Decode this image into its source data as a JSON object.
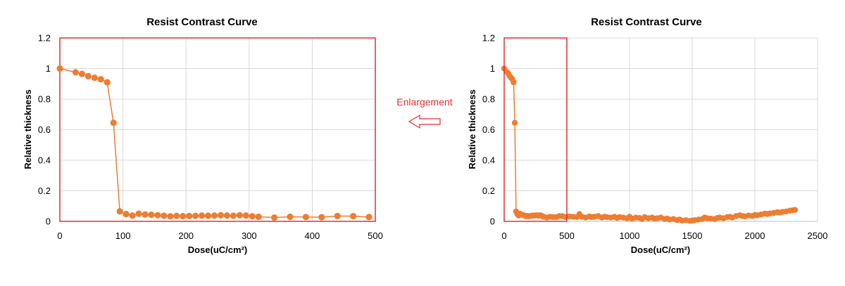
{
  "colors": {
    "series": "#ED7D31",
    "highlight": "#E03030",
    "grid": "#D9D9D9"
  },
  "annotation": {
    "label": "Enlargement",
    "arrow_icon": "left-arrow-icon"
  },
  "chart_data": [
    {
      "type": "scatter",
      "title": "Resist Contrast Curve",
      "xlabel": "Dose(uC/cm²)",
      "ylabel": "Relative thickness",
      "xlim": [
        0,
        500
      ],
      "ylim": [
        0,
        1.2
      ],
      "xticks": [
        "0",
        "100",
        "200",
        "300",
        "400",
        "500"
      ],
      "yticks": [
        "0",
        "0.2",
        "0.4",
        "0.6",
        "0.8",
        "1",
        "1.2"
      ],
      "grid": true,
      "series": [
        {
          "x": [
            0,
            25,
            35,
            45,
            55,
            65,
            75,
            85,
            95,
            105,
            115,
            125,
            135,
            145,
            155,
            165,
            175,
            185,
            195,
            205,
            215,
            225,
            235,
            245,
            255,
            265,
            275,
            285,
            295,
            305,
            315,
            340,
            365,
            390,
            415,
            440,
            465,
            490
          ],
          "y": [
            1.0,
            0.975,
            0.965,
            0.95,
            0.94,
            0.93,
            0.91,
            0.645,
            0.065,
            0.048,
            0.038,
            0.05,
            0.045,
            0.043,
            0.04,
            0.037,
            0.033,
            0.036,
            0.034,
            0.035,
            0.036,
            0.038,
            0.037,
            0.038,
            0.04,
            0.038,
            0.037,
            0.04,
            0.038,
            0.033,
            0.03,
            0.025,
            0.03,
            0.028,
            0.027,
            0.035,
            0.034,
            0.028
          ]
        }
      ]
    },
    {
      "type": "scatter",
      "title": "Resist Contrast Curve",
      "xlabel": "Dose(uC/cm²)",
      "ylabel": "Relative thickness",
      "xlim": [
        0,
        2500
      ],
      "ylim": [
        0,
        1.2
      ],
      "xticks": [
        "0",
        "500",
        "1000",
        "1500",
        "2000",
        "2500"
      ],
      "yticks": [
        "0",
        "0.2",
        "0.4",
        "0.6",
        "0.8",
        "1",
        "1.2"
      ],
      "grid": true,
      "highlight_region": {
        "x": [
          0,
          500
        ],
        "y": [
          0,
          1.2
        ]
      },
      "series": [
        {
          "x": [
            0,
            25,
            35,
            45,
            55,
            65,
            75,
            85,
            95,
            105,
            115,
            125,
            135,
            145,
            155,
            165,
            175,
            185,
            195,
            205,
            215,
            225,
            235,
            245,
            255,
            265,
            275,
            285,
            295,
            305,
            315,
            340,
            365,
            390,
            415,
            440,
            465,
            490,
            520,
            550,
            580,
            600,
            620,
            650,
            680,
            700,
            720,
            750,
            780,
            800,
            820,
            850,
            880,
            900,
            920,
            950,
            980,
            1000,
            1020,
            1050,
            1080,
            1100,
            1120,
            1150,
            1180,
            1200,
            1220,
            1250,
            1280,
            1300,
            1320,
            1350,
            1380,
            1400,
            1420,
            1450,
            1480,
            1500,
            1520,
            1550,
            1580,
            1600,
            1620,
            1650,
            1680,
            1700,
            1720,
            1750,
            1780,
            1800,
            1820,
            1850,
            1880,
            1900,
            1920,
            1950,
            1980,
            2000,
            2020,
            2050,
            2080,
            2100,
            2120,
            2150,
            2180,
            2200,
            2220,
            2250,
            2280,
            2300,
            2320
          ],
          "y": [
            1.0,
            0.975,
            0.965,
            0.95,
            0.94,
            0.93,
            0.91,
            0.645,
            0.065,
            0.048,
            0.038,
            0.05,
            0.045,
            0.043,
            0.04,
            0.037,
            0.033,
            0.036,
            0.034,
            0.035,
            0.036,
            0.038,
            0.037,
            0.038,
            0.04,
            0.038,
            0.037,
            0.04,
            0.038,
            0.033,
            0.03,
            0.025,
            0.03,
            0.028,
            0.027,
            0.035,
            0.034,
            0.028,
            0.032,
            0.03,
            0.028,
            0.048,
            0.03,
            0.025,
            0.032,
            0.028,
            0.03,
            0.035,
            0.025,
            0.03,
            0.028,
            0.025,
            0.03,
            0.022,
            0.028,
            0.025,
            0.02,
            0.03,
            0.018,
            0.025,
            0.022,
            0.015,
            0.028,
            0.02,
            0.025,
            0.018,
            0.02,
            0.025,
            0.015,
            0.018,
            0.012,
            0.015,
            0.008,
            0.012,
            0.005,
            0.008,
            0.003,
            0.005,
            0.008,
            0.012,
            0.015,
            0.025,
            0.02,
            0.018,
            0.015,
            0.022,
            0.025,
            0.02,
            0.028,
            0.03,
            0.025,
            0.035,
            0.04,
            0.035,
            0.032,
            0.038,
            0.035,
            0.042,
            0.04,
            0.045,
            0.05,
            0.048,
            0.052,
            0.055,
            0.06,
            0.058,
            0.062,
            0.065,
            0.07,
            0.072,
            0.075
          ]
        }
      ]
    }
  ]
}
